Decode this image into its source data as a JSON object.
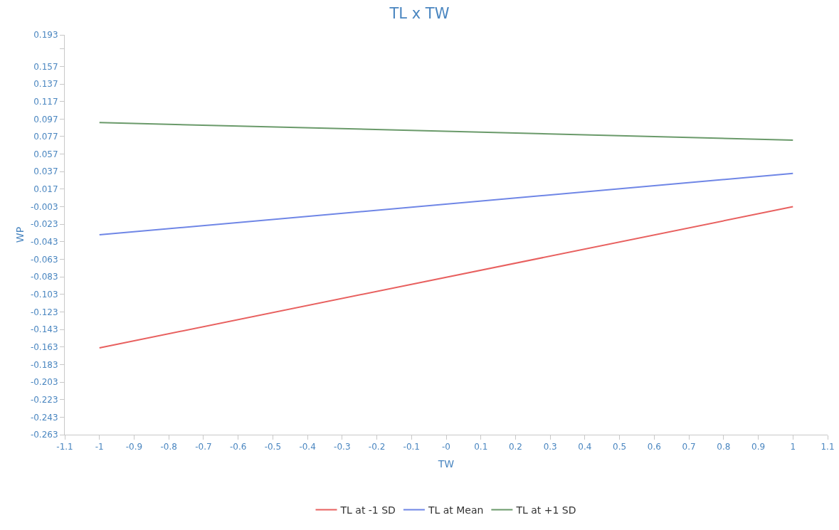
{
  "chart_data": {
    "type": "line",
    "title": "TL x TW",
    "xlabel": "TW",
    "ylabel": "WP",
    "x": [
      -1,
      1
    ],
    "series": [
      {
        "name": "TL at -1 SD",
        "color": "#e8605f",
        "values": [
          -0.164,
          -0.003
        ]
      },
      {
        "name": "TL at Mean",
        "color": "#6f86e6",
        "values": [
          -0.035,
          0.035
        ]
      },
      {
        "name": "TL at +1 SD",
        "color": "#6a9a6a",
        "values": [
          0.093,
          0.073
        ]
      }
    ],
    "xlim": [
      -1.1,
      1.1
    ],
    "xticks": [
      -1.1,
      -1,
      -0.9,
      -0.8,
      -0.7,
      -0.6,
      -0.5,
      -0.4,
      -0.3,
      -0.2,
      -0.1,
      {
        "value": 0,
        "label": "-0"
      },
      0.1,
      0.2,
      0.3,
      0.4,
      0.5,
      0.6,
      0.7,
      0.8,
      0.9,
      1,
      1.1
    ],
    "ylim": [
      -0.263,
      0.193
    ],
    "yticks": [
      -0.263,
      -0.243,
      -0.223,
      -0.203,
      -0.183,
      -0.163,
      -0.143,
      -0.123,
      -0.103,
      -0.083,
      -0.063,
      -0.043,
      -0.023,
      -0.003,
      0.017,
      0.037,
      0.057,
      0.077,
      0.097,
      0.117,
      0.137,
      0.157,
      {
        "value": 0.177,
        "label": null
      },
      0.193
    ],
    "grid": false,
    "legend": "bottom",
    "marker": "none",
    "line_style": "solid"
  }
}
